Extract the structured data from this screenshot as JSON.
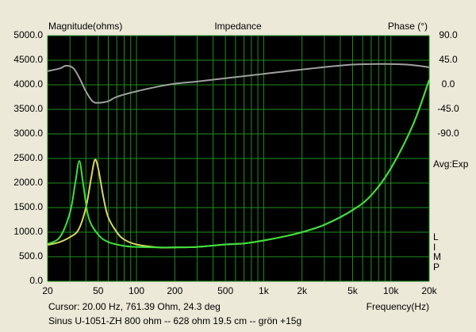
{
  "chart_data": {
    "type": "line",
    "title": "Impedance",
    "y_label": "Magnitude(ohms)",
    "y2_label": "Phase (°)",
    "x_label": "Frequency(Hz)",
    "annotation": "Avg:Exp",
    "limp_label": "LIMP",
    "cursor_text": "Cursor: 20.00 Hz, 761.39 Ohm, 24.3 deg",
    "description": "Sinus U-1051-ZH 800 ohm -- 628 ohm 19.5 cm -- grön +15g",
    "log_x": true,
    "grid": true,
    "grid_color": "#1f8f1f",
    "background": "#000000",
    "xlim": [
      20,
      20000
    ],
    "xticks": [
      20,
      50,
      100,
      200,
      500,
      {
        "value": 1000,
        "label": "1k"
      },
      {
        "value": 2000,
        "label": "2k"
      },
      {
        "value": 5000,
        "label": "5k"
      },
      {
        "value": 10000,
        "label": "10k"
      },
      {
        "value": 20000,
        "label": "20k"
      }
    ],
    "xminorticks": [
      30,
      40,
      60,
      70,
      80,
      90,
      300,
      400,
      600,
      700,
      800,
      900,
      3000,
      4000,
      6000,
      7000,
      8000,
      9000
    ],
    "ylim": [
      0,
      5000
    ],
    "yticks": [
      {
        "value": 0,
        "label": "0.0"
      },
      {
        "value": 500,
        "label": "500.0"
      },
      {
        "value": 1000,
        "label": "1000.0"
      },
      {
        "value": 1500,
        "label": "1500.0"
      },
      {
        "value": 2000,
        "label": "2000.0"
      },
      {
        "value": 2500,
        "label": "2500.0"
      },
      {
        "value": 3000,
        "label": "3000.0"
      },
      {
        "value": 3500,
        "label": "3500.0"
      },
      {
        "value": 4000,
        "label": "4000.0"
      },
      {
        "value": 4500,
        "label": "4500.0"
      },
      {
        "value": 5000,
        "label": "5000.0"
      }
    ],
    "y2lim": [
      -360,
      90
    ],
    "y2ticks": [
      {
        "value": 90,
        "label": "90.0"
      },
      {
        "value": 45,
        "label": "45.0"
      },
      {
        "value": 0,
        "label": "0.0"
      },
      {
        "value": -45,
        "label": "-45.0"
      },
      {
        "value": -90,
        "label": "-90.0"
      }
    ],
    "series": [
      {
        "color": "#a0a0a0",
        "axis": "y2",
        "x": [
          20,
          25,
          28,
          32,
          36,
          40,
          45,
          50,
          60,
          70,
          100,
          150,
          200,
          300,
          500,
          1000,
          2000,
          5000,
          10000,
          15000,
          20000
        ],
        "values": [
          25,
          30,
          35,
          30,
          10,
          -12,
          -30,
          -33,
          -30,
          -22,
          -12,
          -3,
          2,
          6,
          12,
          20,
          28,
          37,
          38,
          36,
          32
        ]
      },
      {
        "color": "#d8d860",
        "x": [
          20,
          25,
          30,
          35,
          40,
          44,
          47,
          50,
          55,
          60,
          70,
          80,
          100,
          150,
          200,
          300,
          500,
          700,
          1000,
          1500,
          2000,
          3000,
          5000,
          7000,
          10000,
          15000,
          20000
        ],
        "values": [
          740,
          800,
          900,
          1050,
          1500,
          2100,
          2470,
          2300,
          1700,
          1300,
          1000,
          850,
          750,
          690,
          690,
          700,
          750,
          770,
          830,
          920,
          1000,
          1150,
          1450,
          1750,
          2300,
          3200,
          4100
        ]
      },
      {
        "color": "#3ce03c",
        "x": [
          20,
          25,
          30,
          33,
          35.5,
          38,
          42,
          50,
          60,
          80,
          100,
          150,
          200,
          300,
          500,
          700,
          1000,
          1500,
          2000,
          3000,
          5000,
          7000,
          10000,
          15000,
          20000
        ],
        "values": [
          760,
          900,
          1400,
          2000,
          2450,
          2000,
          1300,
          950,
          800,
          720,
          700,
          690,
          690,
          700,
          750,
          770,
          830,
          920,
          1000,
          1150,
          1450,
          1750,
          2300,
          3200,
          4100
        ]
      }
    ]
  }
}
